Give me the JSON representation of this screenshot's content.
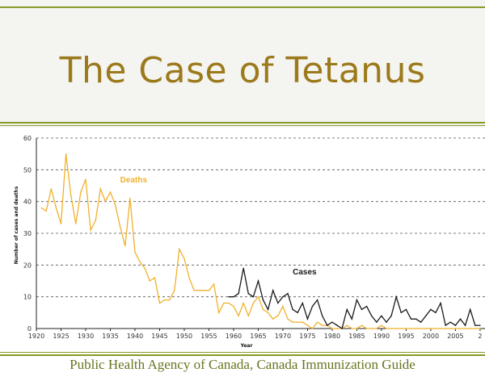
{
  "slide": {
    "title": "The Case of Tetanus",
    "caption": "Public Health Agency of Canada, Canada Immunization Guide"
  },
  "colors": {
    "accent": "#9c7a1c",
    "rule": "#8a9a2a",
    "deaths": "#f0b12c",
    "cases": "#1a1a1a"
  },
  "chart_data": {
    "type": "line",
    "title": "",
    "xlabel": "Year",
    "ylabel": "Number of cases and deaths",
    "xlim": [
      1920,
      2010
    ],
    "ylim": [
      0,
      60
    ],
    "x_ticks": [
      "1920",
      "1925",
      "1930",
      "1935",
      "1940",
      "1945",
      "1950",
      "1955",
      "1960",
      "1965",
      "1970",
      "1975",
      "1980",
      "1985",
      "1990",
      "1995",
      "2000",
      "2005",
      "2"
    ],
    "y_ticks": [
      "0",
      "10",
      "20",
      "30",
      "40",
      "50",
      "60"
    ],
    "grid": "horizontal dashed",
    "series": [
      {
        "name": "Deaths",
        "color": "#f0b12c",
        "x": [
          1921,
          1922,
          1923,
          1924,
          1925,
          1926,
          1927,
          1928,
          1929,
          1930,
          1931,
          1932,
          1933,
          1934,
          1935,
          1936,
          1937,
          1938,
          1939,
          1940,
          1941,
          1942,
          1943,
          1944,
          1945,
          1946,
          1947,
          1948,
          1949,
          1950,
          1951,
          1952,
          1953,
          1954,
          1955,
          1956,
          1957,
          1958,
          1959,
          1960,
          1961,
          1962,
          1963,
          1964,
          1965,
          1966,
          1967,
          1968,
          1969,
          1970,
          1971,
          1972,
          1973,
          1974,
          1975,
          1976,
          1977,
          1978,
          1979,
          1980,
          1981,
          1982,
          1983,
          1984,
          1985,
          1986,
          1987,
          1988,
          1989,
          1990,
          1991,
          1992,
          1993,
          1994,
          1995,
          1996,
          1997,
          1998,
          1999,
          2000,
          2001,
          2002,
          2003,
          2004,
          2005,
          2006,
          2007,
          2008,
          2009,
          2010
        ],
        "values": [
          38,
          37,
          44,
          38,
          33,
          55,
          42,
          33,
          43,
          47,
          31,
          34,
          44,
          40,
          43,
          39,
          32,
          26,
          41,
          24,
          21,
          19,
          15,
          16,
          8,
          9,
          9,
          12,
          25,
          22,
          16,
          12,
          12,
          12,
          12,
          14,
          5,
          8,
          8,
          7,
          4,
          8,
          4,
          8,
          10,
          6,
          5,
          3,
          4,
          7,
          3,
          2,
          2,
          2,
          1,
          0,
          2,
          1,
          1,
          0,
          0,
          0,
          1,
          0,
          0,
          1,
          0,
          0,
          0,
          1,
          0,
          0,
          0,
          0,
          0,
          0,
          0,
          0,
          0,
          0,
          0,
          0,
          0,
          0,
          0,
          0,
          0,
          0,
          0,
          0
        ]
      },
      {
        "name": "Cases",
        "color": "#1a1a1a",
        "x": [
          1959,
          1960,
          1961,
          1962,
          1963,
          1964,
          1965,
          1966,
          1967,
          1968,
          1969,
          1970,
          1971,
          1972,
          1973,
          1974,
          1975,
          1976,
          1977,
          1978,
          1979,
          1980,
          1981,
          1982,
          1983,
          1984,
          1985,
          1986,
          1987,
          1988,
          1989,
          1990,
          1991,
          1992,
          1993,
          1994,
          1995,
          1996,
          1997,
          1998,
          1999,
          2000,
          2001,
          2002,
          2003,
          2004,
          2005,
          2006,
          2007,
          2008,
          2009,
          2010
        ],
        "values": [
          10,
          10,
          11,
          19,
          11,
          10,
          15,
          9,
          6,
          12,
          8,
          10,
          11,
          6,
          5,
          8,
          3,
          7,
          9,
          4,
          1,
          2,
          1,
          0,
          6,
          3,
          9,
          6,
          7,
          4,
          2,
          4,
          2,
          4,
          10,
          5,
          6,
          3,
          3,
          2,
          4,
          6,
          5,
          8,
          1,
          2,
          1,
          3,
          1,
          6,
          1,
          1
        ]
      }
    ],
    "annotations": [
      {
        "text": "Deaths",
        "x": 1937,
        "y": 46
      },
      {
        "text": "Cases",
        "x": 1972,
        "y": 17
      }
    ]
  }
}
